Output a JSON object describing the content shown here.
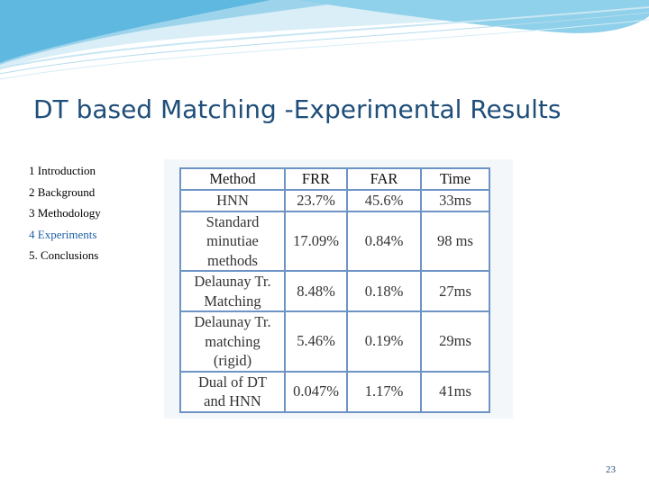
{
  "slide": {
    "title": "DT based Matching -Experimental Results",
    "page_number": "23"
  },
  "nav": {
    "items": [
      {
        "label": "1 Introduction",
        "active": false
      },
      {
        "label": "2 Background",
        "active": false
      },
      {
        "label": "3 Methodology",
        "active": false
      },
      {
        "label": "4 Experiments",
        "active": true
      },
      {
        "label": "5. Conclusions",
        "active": false
      }
    ]
  },
  "results_table": {
    "headers": [
      "Method",
      "FRR",
      "FAR",
      "Time"
    ],
    "rows": [
      {
        "method": [
          "HNN"
        ],
        "frr": "23.7%",
        "far": "45.6%",
        "time": "33ms"
      },
      {
        "method": [
          "Standard",
          "minutiae",
          "methods"
        ],
        "frr": "17.09%",
        "far": "0.84%",
        "time": "98 ms"
      },
      {
        "method": [
          "Delaunay Tr.",
          "Matching"
        ],
        "frr": "8.48%",
        "far": "0.18%",
        "time": "27ms"
      },
      {
        "method": [
          "Delaunay Tr.",
          "matching",
          "(rigid)"
        ],
        "frr": "5.46%",
        "far": "0.19%",
        "time": "29ms"
      },
      {
        "method": [
          "Dual of DT",
          "and HNN"
        ],
        "frr": "0.047%",
        "far": "1.17%",
        "time": "41ms"
      }
    ]
  },
  "colors": {
    "title": "#1f4e79",
    "nav_active": "#1f5fa8",
    "table_border": "#6d94c4"
  }
}
